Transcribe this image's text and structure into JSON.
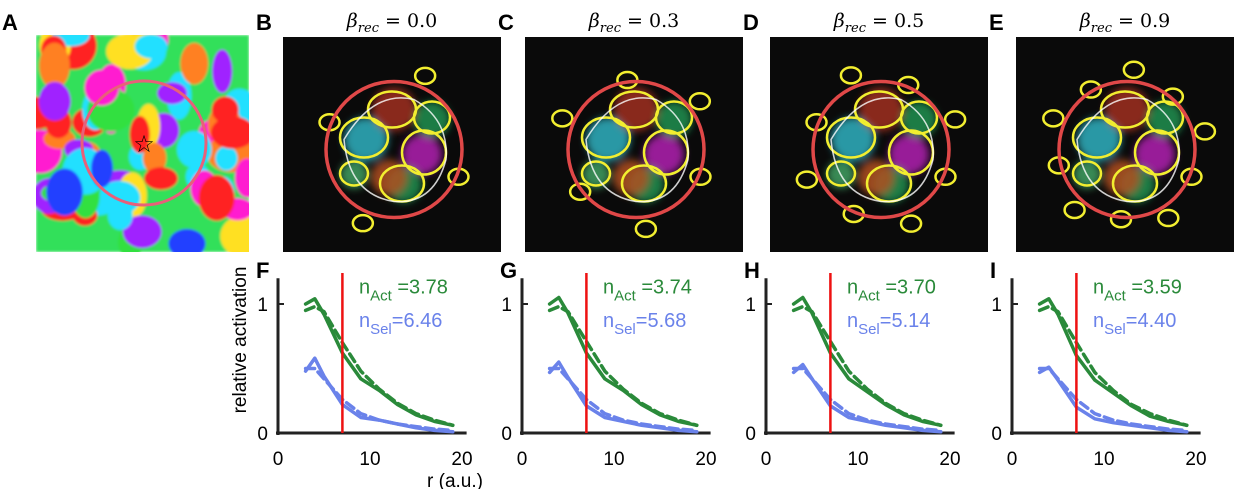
{
  "panel_letters": [
    "A",
    "B",
    "C",
    "D",
    "E",
    "F",
    "G",
    "H",
    "I"
  ],
  "map_panels": [
    {
      "letter": "B",
      "beta": "0.0"
    },
    {
      "letter": "C",
      "beta": "0.3"
    },
    {
      "letter": "D",
      "beta": "0.5"
    },
    {
      "letter": "E",
      "beta": "0.9"
    }
  ],
  "title_prefix": "β",
  "title_subscript": "rec",
  "title_eq": " = ",
  "colors": {
    "act": "#2a8a3a",
    "sel": "#6a82ea",
    "radius_line": "#ee1111",
    "circle": "#e04848",
    "contour_yellow": "#f2ee30",
    "contour_white": "#ffffff"
  },
  "chart_data": [
    {
      "panel": "F",
      "type": "line",
      "x_tick_labels": [
        "0",
        "10",
        "20"
      ],
      "y_tick_labels": [
        "0",
        "1"
      ],
      "xlim": [
        0,
        20
      ],
      "ylim": [
        0,
        1.2
      ],
      "ylabel": "relative activation",
      "xlabel": "r (a.u.)",
      "radius_marker_x": 7,
      "n_act": "=3.78",
      "n_sel": "=6.46",
      "series": [
        {
          "style": "solid",
          "color": "act",
          "x": [
            3,
            4,
            5,
            7,
            9,
            11,
            13,
            15,
            17,
            19
          ],
          "y": [
            1.0,
            1.04,
            0.92,
            0.62,
            0.42,
            0.33,
            0.22,
            0.14,
            0.09,
            0.06
          ]
        },
        {
          "style": "dashed",
          "color": "act",
          "x": [
            3,
            4,
            5,
            7,
            9,
            11,
            13,
            15,
            17,
            19
          ],
          "y": [
            0.95,
            0.98,
            0.94,
            0.7,
            0.48,
            0.34,
            0.23,
            0.15,
            0.1,
            0.06
          ]
        },
        {
          "style": "solid",
          "color": "sel",
          "x": [
            3,
            4,
            5,
            7,
            9,
            11,
            13,
            15,
            17,
            19
          ],
          "y": [
            0.48,
            0.58,
            0.44,
            0.22,
            0.12,
            0.1,
            0.07,
            0.04,
            0.02,
            0.01
          ]
        },
        {
          "style": "dashed",
          "color": "sel",
          "x": [
            3,
            4,
            5,
            7,
            9,
            11,
            13,
            15,
            17,
            19
          ],
          "y": [
            0.5,
            0.5,
            0.42,
            0.26,
            0.15,
            0.1,
            0.07,
            0.05,
            0.03,
            0.02
          ]
        }
      ]
    },
    {
      "panel": "G",
      "type": "line",
      "x_tick_labels": [
        "0",
        "10",
        "20"
      ],
      "y_tick_labels": [
        "0",
        "1"
      ],
      "xlim": [
        0,
        20
      ],
      "ylim": [
        0,
        1.2
      ],
      "radius_marker_x": 7,
      "n_act": "=3.74",
      "n_sel": "=5.68",
      "series": [
        {
          "style": "solid",
          "color": "act",
          "x": [
            3,
            4,
            5,
            7,
            9,
            11,
            13,
            15,
            17,
            19
          ],
          "y": [
            1.0,
            1.05,
            0.93,
            0.62,
            0.42,
            0.33,
            0.22,
            0.14,
            0.09,
            0.06
          ]
        },
        {
          "style": "dashed",
          "color": "act",
          "x": [
            3,
            4,
            5,
            7,
            9,
            11,
            13,
            15,
            17,
            19
          ],
          "y": [
            0.95,
            0.98,
            0.94,
            0.71,
            0.48,
            0.34,
            0.23,
            0.15,
            0.1,
            0.06
          ]
        },
        {
          "style": "solid",
          "color": "sel",
          "x": [
            3,
            4,
            5,
            7,
            9,
            11,
            13,
            15,
            17,
            19
          ],
          "y": [
            0.47,
            0.55,
            0.43,
            0.21,
            0.12,
            0.09,
            0.06,
            0.04,
            0.02,
            0.01
          ]
        },
        {
          "style": "dashed",
          "color": "sel",
          "x": [
            3,
            4,
            5,
            7,
            9,
            11,
            13,
            15,
            17,
            19
          ],
          "y": [
            0.5,
            0.5,
            0.42,
            0.26,
            0.15,
            0.1,
            0.07,
            0.05,
            0.03,
            0.02
          ]
        }
      ]
    },
    {
      "panel": "H",
      "type": "line",
      "x_tick_labels": [
        "0",
        "10",
        "20"
      ],
      "y_tick_labels": [
        "0",
        "1"
      ],
      "xlim": [
        0,
        20
      ],
      "ylim": [
        0,
        1.2
      ],
      "radius_marker_x": 7,
      "n_act": "=3.70",
      "n_sel": "=5.14",
      "series": [
        {
          "style": "solid",
          "color": "act",
          "x": [
            3,
            4,
            5,
            7,
            9,
            11,
            13,
            15,
            17,
            19
          ],
          "y": [
            1.0,
            1.05,
            0.93,
            0.62,
            0.42,
            0.32,
            0.22,
            0.14,
            0.09,
            0.06
          ]
        },
        {
          "style": "dashed",
          "color": "act",
          "x": [
            3,
            4,
            5,
            7,
            9,
            11,
            13,
            15,
            17,
            19
          ],
          "y": [
            0.95,
            0.98,
            0.94,
            0.71,
            0.48,
            0.34,
            0.23,
            0.15,
            0.1,
            0.06
          ]
        },
        {
          "style": "solid",
          "color": "sel",
          "x": [
            3,
            4,
            5,
            7,
            9,
            11,
            13,
            15,
            17,
            19
          ],
          "y": [
            0.47,
            0.53,
            0.42,
            0.21,
            0.12,
            0.09,
            0.06,
            0.04,
            0.02,
            0.01
          ]
        },
        {
          "style": "dashed",
          "color": "sel",
          "x": [
            3,
            4,
            5,
            7,
            9,
            11,
            13,
            15,
            17,
            19
          ],
          "y": [
            0.5,
            0.5,
            0.42,
            0.26,
            0.15,
            0.1,
            0.07,
            0.05,
            0.03,
            0.02
          ]
        }
      ]
    },
    {
      "panel": "I",
      "type": "line",
      "x_tick_labels": [
        "0",
        "10",
        "20"
      ],
      "y_tick_labels": [
        "0",
        "1"
      ],
      "xlim": [
        0,
        20
      ],
      "ylim": [
        0,
        1.2
      ],
      "radius_marker_x": 7,
      "n_act": "=3.59",
      "n_sel": "=4.40",
      "series": [
        {
          "style": "solid",
          "color": "act",
          "x": [
            3,
            4,
            5,
            7,
            9,
            11,
            13,
            15,
            17,
            19
          ],
          "y": [
            1.0,
            1.04,
            0.92,
            0.6,
            0.41,
            0.31,
            0.21,
            0.13,
            0.09,
            0.06
          ]
        },
        {
          "style": "dashed",
          "color": "act",
          "x": [
            3,
            4,
            5,
            7,
            9,
            11,
            13,
            15,
            17,
            19
          ],
          "y": [
            0.95,
            0.98,
            0.94,
            0.7,
            0.47,
            0.33,
            0.22,
            0.15,
            0.1,
            0.06
          ]
        },
        {
          "style": "solid",
          "color": "sel",
          "x": [
            3,
            4,
            5,
            7,
            9,
            11,
            13,
            15,
            17,
            19
          ],
          "y": [
            0.47,
            0.51,
            0.41,
            0.2,
            0.11,
            0.08,
            0.06,
            0.04,
            0.02,
            0.01
          ]
        },
        {
          "style": "dashed",
          "color": "sel",
          "x": [
            3,
            4,
            5,
            7,
            9,
            11,
            13,
            15,
            17,
            19
          ],
          "y": [
            0.5,
            0.5,
            0.42,
            0.26,
            0.15,
            0.1,
            0.07,
            0.05,
            0.03,
            0.02
          ]
        }
      ]
    }
  ],
  "n_act_label": {
    "base": "n",
    "sub": "Act"
  },
  "n_sel_label": {
    "base": "n",
    "sub": "Sel"
  }
}
